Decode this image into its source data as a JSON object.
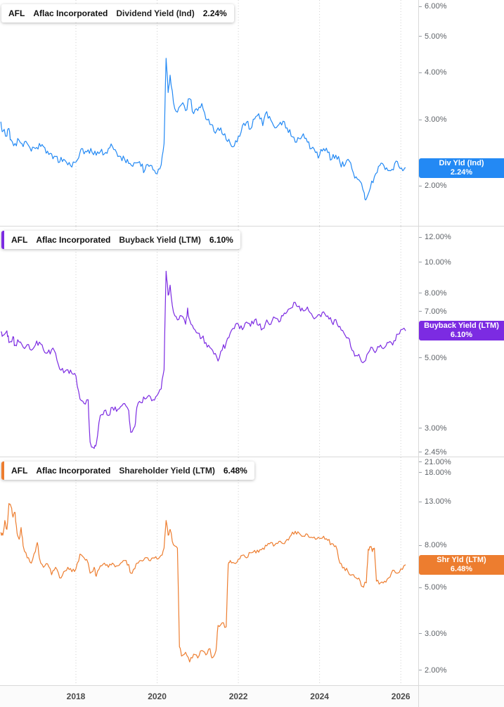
{
  "theme": {
    "grid": "#cfcfcf",
    "separator": "#d9d9d9",
    "tick_text": "#5f6368",
    "xlabel_text": "#4a4a4a",
    "chip_bg": "#ffffff"
  },
  "panels": [
    {
      "legend": {
        "ticker": "AFL",
        "company": "Aflac Incorporated",
        "metric": "Dividend Yield (Ind)",
        "value": "2.24%"
      },
      "badge": {
        "line1": "Div Yld (Ind)",
        "line2": "2.24%"
      }
    },
    {
      "legend": {
        "ticker": "AFL",
        "company": "Aflac Incorporated",
        "metric": "Buyback Yield (LTM)",
        "value": "6.10%"
      },
      "badge": {
        "line1": "Buyback Yield (LTM)",
        "line2": "6.10%"
      }
    },
    {
      "legend": {
        "ticker": "AFL",
        "company": "Aflac Incorporated",
        "metric": "Shareholder Yield (LTM)",
        "value": "6.48%"
      },
      "badge": {
        "line1": "Shr Yld (LTM)",
        "line2": "6.48%"
      }
    }
  ],
  "x_axis": {
    "labels": [
      "2018",
      "2020",
      "2022",
      "2024",
      "2026"
    ],
    "years": [
      2018,
      2020,
      2022,
      2024,
      2026
    ]
  },
  "chart_data": [
    {
      "type": "line",
      "title": "AFL Aflac Incorporated Dividend Yield (Ind)",
      "name": "Dividend Yield (Ind)",
      "slug": "dividend-yield",
      "color": "#2389f4",
      "badge_color": "#2389f4",
      "stripe_color": null,
      "log_scale": true,
      "xlim": [
        2016.13,
        2026.43
      ],
      "ylim_top": 6.26,
      "ylim_bottom": 1.57,
      "last_value": 2.24,
      "yticks": [
        {
          "label": "6.00%",
          "value": 6
        },
        {
          "label": "5.00%",
          "value": 5
        },
        {
          "label": "4.00%",
          "value": 4
        },
        {
          "label": "3.00%",
          "value": 3
        },
        {
          "label": "2.00%",
          "value": 2
        }
      ],
      "x": [
        2016.15,
        2016.2,
        2016.3,
        2016.35,
        2016.4,
        2016.5,
        2016.6,
        2016.7,
        2016.8,
        2016.9,
        2017.0,
        2017.1,
        2017.2,
        2017.3,
        2017.4,
        2017.5,
        2017.6,
        2017.7,
        2017.8,
        2017.9,
        2018.0,
        2018.1,
        2018.15,
        2018.2,
        2018.3,
        2018.4,
        2018.5,
        2018.6,
        2018.7,
        2018.8,
        2018.9,
        2019.0,
        2019.1,
        2019.2,
        2019.3,
        2019.4,
        2019.5,
        2019.6,
        2019.7,
        2019.8,
        2019.9,
        2020.0,
        2020.1,
        2020.17,
        2020.22,
        2020.27,
        2020.32,
        2020.4,
        2020.5,
        2020.6,
        2020.7,
        2020.8,
        2020.9,
        2021.0,
        2021.1,
        2021.2,
        2021.3,
        2021.4,
        2021.5,
        2021.6,
        2021.7,
        2021.8,
        2021.9,
        2022.0,
        2022.1,
        2022.2,
        2022.3,
        2022.4,
        2022.5,
        2022.6,
        2022.7,
        2022.8,
        2022.9,
        2023.0,
        2023.1,
        2023.2,
        2023.3,
        2023.4,
        2023.5,
        2023.6,
        2023.7,
        2023.8,
        2023.9,
        2024.0,
        2024.1,
        2024.2,
        2024.3,
        2024.4,
        2024.5,
        2024.6,
        2024.7,
        2024.8,
        2024.9,
        2025.0,
        2025.1,
        2025.15,
        2025.25,
        2025.35,
        2025.45,
        2025.55,
        2025.65,
        2025.75,
        2025.85,
        2025.95,
        2026.05,
        2026.12
      ],
      "y": [
        2.97,
        2.8,
        2.72,
        2.85,
        2.66,
        2.6,
        2.65,
        2.55,
        2.6,
        2.48,
        2.52,
        2.6,
        2.55,
        2.48,
        2.44,
        2.4,
        2.32,
        2.36,
        2.28,
        2.25,
        2.32,
        2.46,
        2.52,
        2.44,
        2.5,
        2.46,
        2.42,
        2.47,
        2.44,
        2.52,
        2.55,
        2.46,
        2.4,
        2.36,
        2.3,
        2.26,
        2.31,
        2.26,
        2.21,
        2.26,
        2.21,
        2.16,
        2.28,
        2.6,
        4.38,
        3.55,
        3.95,
        3.35,
        3.15,
        3.3,
        3.18,
        3.42,
        3.12,
        3.18,
        3.32,
        3.02,
        2.92,
        2.8,
        2.86,
        2.76,
        2.66,
        2.6,
        2.56,
        2.72,
        2.9,
        2.96,
        2.84,
        3.02,
        3.12,
        2.9,
        3.16,
        3.0,
        2.86,
        2.92,
        2.98,
        2.86,
        2.72,
        2.62,
        2.68,
        2.76,
        2.62,
        2.52,
        2.46,
        2.42,
        2.52,
        2.46,
        2.36,
        2.42,
        2.32,
        2.26,
        2.36,
        2.22,
        2.12,
        2.06,
        1.92,
        1.85,
        1.98,
        2.12,
        2.26,
        2.3,
        2.24,
        2.2,
        2.3,
        2.26,
        2.2,
        2.24
      ]
    },
    {
      "type": "line",
      "title": "AFL Aflac Incorporated Buyback Yield (LTM)",
      "name": "Buyback Yield (LTM)",
      "slug": "buyback-yield",
      "color": "#7c2be2",
      "badge_color": "#7c2be2",
      "stripe_color": "#7c2be2",
      "log_scale": true,
      "xlim": [
        2016.13,
        2026.43
      ],
      "ylim_top": 13.0,
      "ylim_bottom": 2.45,
      "last_value": 6.1,
      "yticks": [
        {
          "label": "12.00%",
          "value": 12
        },
        {
          "label": "10.00%",
          "value": 10
        },
        {
          "label": "8.00%",
          "value": 8
        },
        {
          "label": "7.00%",
          "value": 7
        },
        {
          "label": "5.00%",
          "value": 5
        },
        {
          "label": "3.00%",
          "value": 3
        },
        {
          "label": "2.45%",
          "value": 2.45
        }
      ],
      "x": [
        2016.15,
        2016.2,
        2016.3,
        2016.35,
        2016.45,
        2016.5,
        2016.6,
        2016.7,
        2016.8,
        2016.9,
        2017.0,
        2017.1,
        2017.2,
        2017.3,
        2017.4,
        2017.5,
        2017.6,
        2017.7,
        2017.8,
        2017.9,
        2018.0,
        2018.1,
        2018.2,
        2018.3,
        2018.35,
        2018.45,
        2018.5,
        2018.6,
        2018.7,
        2018.8,
        2018.9,
        2019.0,
        2019.1,
        2019.2,
        2019.3,
        2019.35,
        2019.45,
        2019.5,
        2019.6,
        2019.7,
        2019.8,
        2019.9,
        2020.0,
        2020.1,
        2020.17,
        2020.22,
        2020.27,
        2020.32,
        2020.4,
        2020.5,
        2020.6,
        2020.7,
        2020.75,
        2020.8,
        2020.9,
        2021.0,
        2021.1,
        2021.2,
        2021.3,
        2021.4,
        2021.5,
        2021.6,
        2021.7,
        2021.8,
        2021.9,
        2022.0,
        2022.1,
        2022.2,
        2022.3,
        2022.4,
        2022.5,
        2022.6,
        2022.7,
        2022.8,
        2022.9,
        2023.0,
        2023.1,
        2023.2,
        2023.3,
        2023.4,
        2023.5,
        2023.6,
        2023.7,
        2023.8,
        2023.9,
        2024.0,
        2024.1,
        2024.2,
        2024.3,
        2024.4,
        2024.5,
        2024.6,
        2024.7,
        2024.8,
        2024.9,
        2025.0,
        2025.1,
        2025.2,
        2025.3,
        2025.4,
        2025.5,
        2025.6,
        2025.7,
        2025.8,
        2025.9,
        2026.0,
        2026.12
      ],
      "y": [
        6.05,
        5.9,
        6.1,
        5.6,
        5.85,
        5.5,
        5.62,
        5.42,
        5.52,
        5.3,
        5.5,
        5.62,
        5.32,
        5.2,
        5.32,
        5.18,
        4.62,
        4.5,
        4.6,
        4.48,
        4.4,
        3.72,
        3.6,
        3.7,
        2.72,
        2.6,
        2.68,
        3.3,
        3.42,
        3.3,
        3.5,
        3.4,
        3.52,
        3.6,
        3.42,
        2.92,
        3.05,
        3.5,
        3.62,
        3.72,
        3.82,
        3.7,
        3.82,
        4.0,
        4.6,
        9.4,
        7.9,
        8.5,
        7.0,
        6.6,
        6.8,
        6.4,
        7.2,
        6.6,
        6.2,
        6.0,
        5.8,
        5.6,
        5.4,
        5.15,
        4.9,
        5.3,
        5.6,
        6.0,
        6.2,
        6.4,
        6.15,
        6.5,
        6.3,
        6.6,
        6.35,
        6.2,
        6.6,
        6.4,
        6.7,
        6.5,
        6.8,
        7.0,
        7.2,
        7.5,
        7.3,
        7.05,
        7.25,
        6.9,
        6.7,
        6.85,
        7.0,
        6.8,
        6.5,
        6.62,
        6.3,
        6.0,
        5.8,
        5.3,
        5.1,
        5.0,
        4.88,
        5.2,
        5.4,
        5.28,
        5.5,
        5.4,
        5.6,
        5.5,
        5.95,
        6.15,
        6.1
      ]
    },
    {
      "type": "line",
      "title": "AFL Aflac Incorporated Shareholder Yield (LTM)",
      "name": "Shareholder Yield (LTM)",
      "slug": "shareholder-yield",
      "color": "#ed7d2f",
      "badge_color": "#ed7d2f",
      "stripe_color": "#ed7d2f",
      "log_scale": true,
      "xlim": [
        2016.13,
        2026.43
      ],
      "ylim_top": 21.4,
      "ylim_bottom": 1.7,
      "last_value": 6.48,
      "yticks": [
        {
          "label": "21.00%",
          "value": 21
        },
        {
          "label": "18.00%",
          "value": 18
        },
        {
          "label": "13.00%",
          "value": 13
        },
        {
          "label": "8.00%",
          "value": 8
        },
        {
          "label": "5.00%",
          "value": 5
        },
        {
          "label": "3.00%",
          "value": 3
        },
        {
          "label": "2.00%",
          "value": 2
        }
      ],
      "x": [
        2016.15,
        2016.2,
        2016.25,
        2016.3,
        2016.35,
        2016.4,
        2016.45,
        2016.5,
        2016.55,
        2016.6,
        2016.65,
        2016.7,
        2016.8,
        2016.9,
        2017.0,
        2017.05,
        2017.1,
        2017.2,
        2017.3,
        2017.4,
        2017.5,
        2017.6,
        2017.7,
        2017.8,
        2017.9,
        2018.0,
        2018.1,
        2018.2,
        2018.3,
        2018.35,
        2018.45,
        2018.5,
        2018.6,
        2018.7,
        2018.8,
        2018.9,
        2019.0,
        2019.1,
        2019.2,
        2019.3,
        2019.35,
        2019.45,
        2019.5,
        2019.6,
        2019.7,
        2019.8,
        2019.9,
        2020.0,
        2020.1,
        2020.17,
        2020.22,
        2020.27,
        2020.32,
        2020.4,
        2020.5,
        2020.55,
        2020.6,
        2020.7,
        2020.8,
        2020.9,
        2021.0,
        2021.1,
        2021.2,
        2021.3,
        2021.35,
        2021.45,
        2021.5,
        2021.6,
        2021.7,
        2021.75,
        2021.8,
        2021.9,
        2022.0,
        2022.1,
        2022.2,
        2022.3,
        2022.4,
        2022.5,
        2022.6,
        2022.7,
        2022.8,
        2022.9,
        2023.0,
        2023.1,
        2023.2,
        2023.3,
        2023.4,
        2023.5,
        2023.6,
        2023.7,
        2023.8,
        2023.9,
        2024.0,
        2024.1,
        2024.2,
        2024.3,
        2024.4,
        2024.5,
        2024.6,
        2024.7,
        2024.8,
        2024.9,
        2025.0,
        2025.05,
        2025.15,
        2025.2,
        2025.25,
        2025.3,
        2025.35,
        2025.4,
        2025.5,
        2025.6,
        2025.7,
        2025.8,
        2025.9,
        2026.0,
        2026.12
      ],
      "y": [
        9.3,
        9.0,
        10.6,
        9.6,
        12.8,
        12.4,
        11.0,
        11.6,
        9.2,
        8.6,
        9.8,
        8.0,
        7.0,
        6.6,
        7.5,
        8.3,
        7.0,
        6.3,
        6.55,
        5.8,
        6.3,
        5.6,
        6.0,
        6.3,
        6.0,
        6.2,
        7.3,
        7.0,
        6.6,
        5.9,
        6.3,
        5.7,
        6.4,
        6.6,
        6.3,
        6.6,
        6.4,
        6.6,
        6.8,
        6.5,
        5.9,
        6.2,
        6.6,
        6.8,
        7.0,
        6.8,
        7.0,
        6.9,
        7.2,
        7.8,
        10.6,
        9.0,
        9.6,
        8.1,
        7.8,
        2.6,
        2.35,
        2.45,
        2.2,
        2.4,
        2.3,
        2.5,
        2.38,
        2.55,
        2.3,
        2.5,
        3.3,
        3.4,
        3.25,
        6.5,
        6.8,
        6.6,
        6.9,
        7.2,
        7.0,
        7.4,
        7.6,
        7.45,
        7.8,
        8.0,
        8.3,
        8.1,
        8.4,
        8.2,
        8.6,
        9.0,
        9.4,
        9.2,
        8.9,
        9.1,
        8.8,
        8.6,
        8.7,
        8.9,
        8.5,
        8.2,
        8.0,
        6.6,
        6.3,
        6.0,
        5.8,
        5.6,
        5.4,
        5.1,
        5.3,
        7.7,
        7.9,
        7.5,
        7.8,
        5.4,
        5.3,
        5.4,
        5.6,
        6.1,
        5.9,
        6.2,
        6.48
      ]
    }
  ]
}
